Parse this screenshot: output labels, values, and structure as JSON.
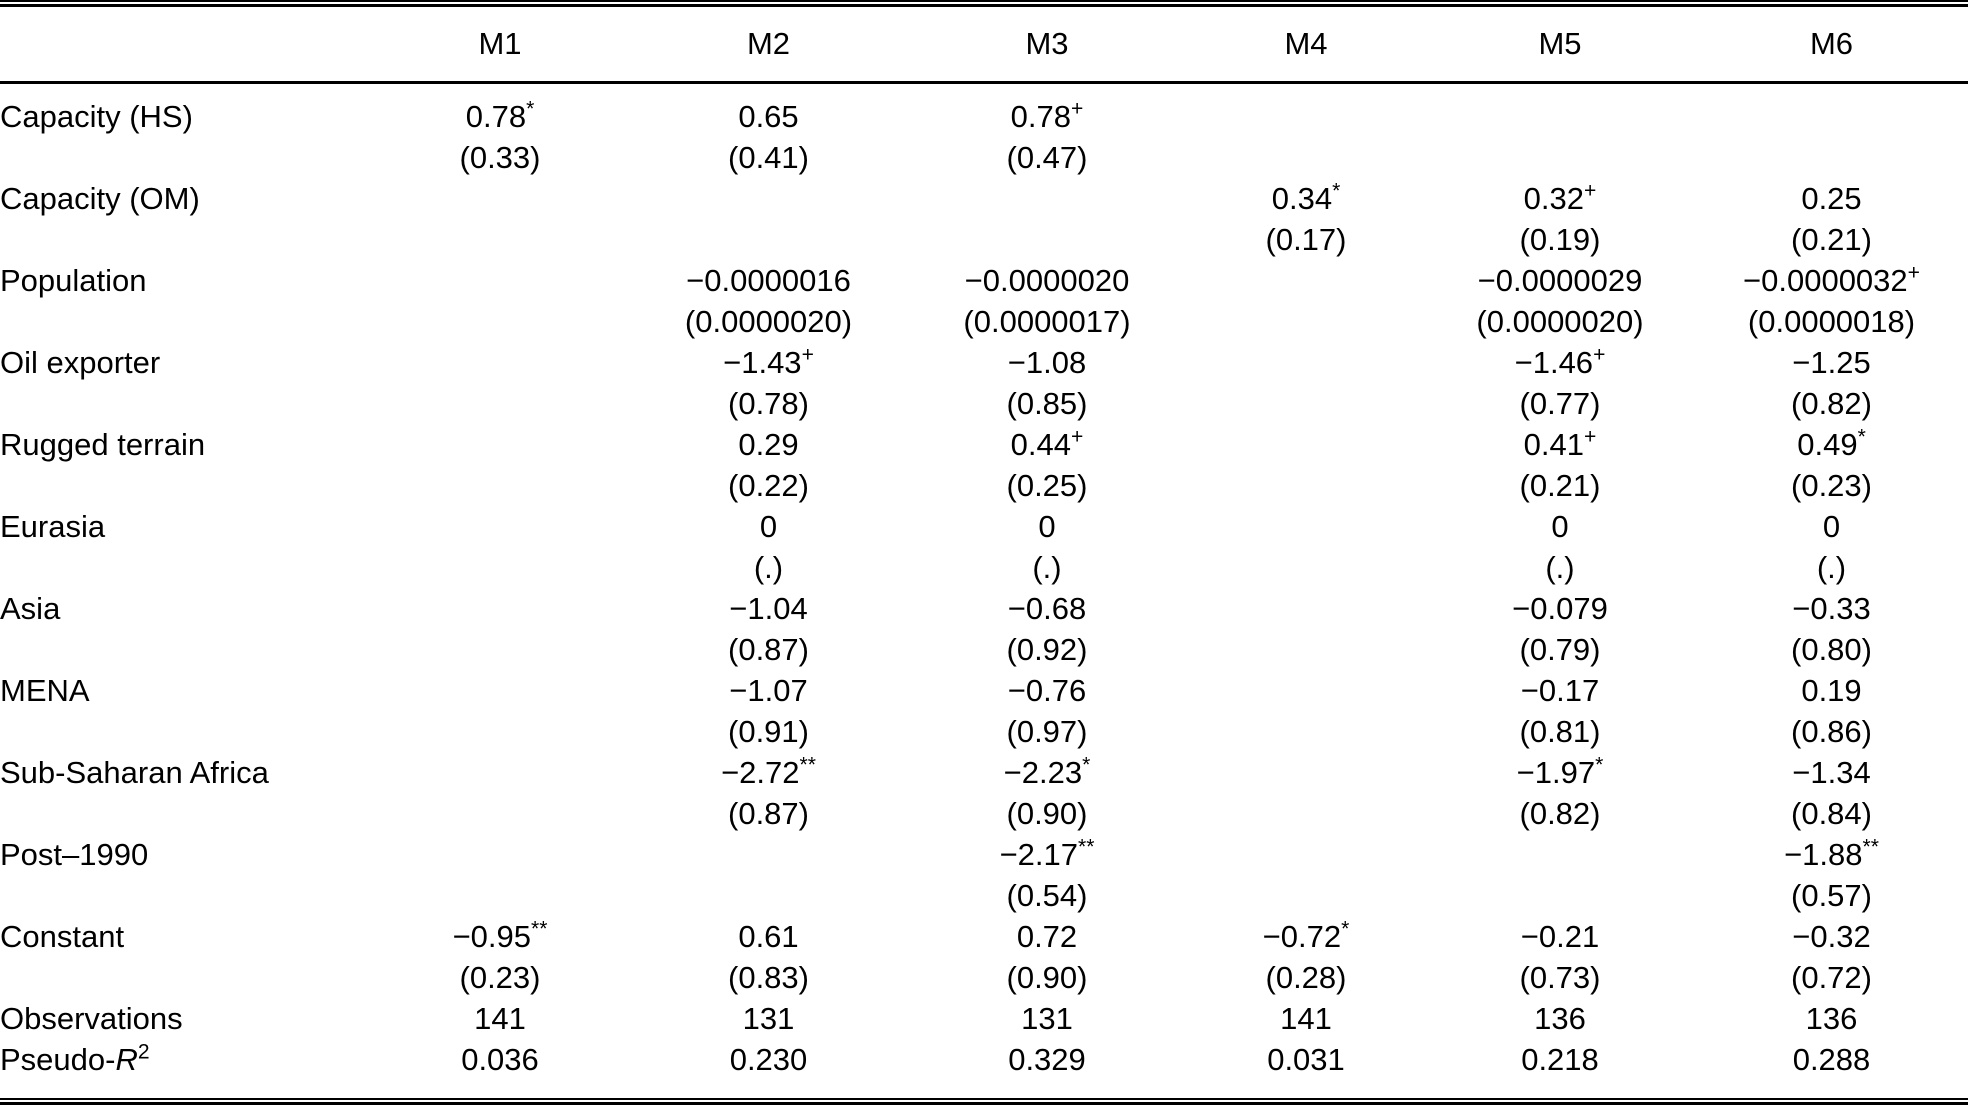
{
  "table": {
    "columns": [
      "",
      "M1",
      "M2",
      "M3",
      "M4",
      "M5",
      "M6"
    ],
    "rows": [
      {
        "kind": "coef",
        "label": "Capacity (HS)",
        "cells": [
          {
            "c": "0.78",
            "m": "*",
            "s": "(0.33)"
          },
          {
            "c": "0.65",
            "m": "",
            "s": "(0.41)"
          },
          {
            "c": "0.78",
            "m": "+",
            "s": "(0.47)"
          },
          null,
          null,
          null
        ]
      },
      {
        "kind": "coef",
        "label": "Capacity (OM)",
        "cells": [
          null,
          null,
          null,
          {
            "c": "0.34",
            "m": "*",
            "s": "(0.17)"
          },
          {
            "c": "0.32",
            "m": "+",
            "s": "(0.19)"
          },
          {
            "c": "0.25",
            "m": "",
            "s": "(0.21)"
          }
        ]
      },
      {
        "kind": "coef",
        "label": "Population",
        "cells": [
          null,
          {
            "c": "−0.0000016",
            "m": "",
            "s": "(0.0000020)"
          },
          {
            "c": "−0.0000020",
            "m": "",
            "s": "(0.0000017)"
          },
          null,
          {
            "c": "−0.0000029",
            "m": "",
            "s": "(0.0000020)"
          },
          {
            "c": "−0.0000032",
            "m": "+",
            "s": "(0.0000018)"
          }
        ]
      },
      {
        "kind": "coef",
        "label": "Oil exporter",
        "cells": [
          null,
          {
            "c": "−1.43",
            "m": "+",
            "s": "(0.78)"
          },
          {
            "c": "−1.08",
            "m": "",
            "s": "(0.85)"
          },
          null,
          {
            "c": "−1.46",
            "m": "+",
            "s": "(0.77)"
          },
          {
            "c": "−1.25",
            "m": "",
            "s": "(0.82)"
          }
        ]
      },
      {
        "kind": "coef",
        "label": "Rugged terrain",
        "cells": [
          null,
          {
            "c": "0.29",
            "m": "",
            "s": "(0.22)"
          },
          {
            "c": "0.44",
            "m": "+",
            "s": "(0.25)"
          },
          null,
          {
            "c": "0.41",
            "m": "+",
            "s": "(0.21)"
          },
          {
            "c": "0.49",
            "m": "*",
            "s": "(0.23)"
          }
        ]
      },
      {
        "kind": "coef",
        "label": "Eurasia",
        "cells": [
          null,
          {
            "c": "0",
            "m": "",
            "s": "(.)"
          },
          {
            "c": "0",
            "m": "",
            "s": "(.)"
          },
          null,
          {
            "c": "0",
            "m": "",
            "s": "(.)"
          },
          {
            "c": "0",
            "m": "",
            "s": "(.)"
          }
        ]
      },
      {
        "kind": "coef",
        "label": "Asia",
        "cells": [
          null,
          {
            "c": "−1.04",
            "m": "",
            "s": "(0.87)"
          },
          {
            "c": "−0.68",
            "m": "",
            "s": "(0.92)"
          },
          null,
          {
            "c": "−0.079",
            "m": "",
            "s": "(0.79)"
          },
          {
            "c": "−0.33",
            "m": "",
            "s": "(0.80)"
          }
        ]
      },
      {
        "kind": "coef",
        "label": "MENA",
        "cells": [
          null,
          {
            "c": "−1.07",
            "m": "",
            "s": "(0.91)"
          },
          {
            "c": "−0.76",
            "m": "",
            "s": "(0.97)"
          },
          null,
          {
            "c": "−0.17",
            "m": "",
            "s": "(0.81)"
          },
          {
            "c": "0.19",
            "m": "",
            "s": "(0.86)"
          }
        ]
      },
      {
        "kind": "coef",
        "label": "Sub-Saharan Africa",
        "cells": [
          null,
          {
            "c": "−2.72",
            "m": "**",
            "s": "(0.87)"
          },
          {
            "c": "−2.23",
            "m": "*",
            "s": "(0.90)"
          },
          null,
          {
            "c": "−1.97",
            "m": "*",
            "s": "(0.82)"
          },
          {
            "c": "−1.34",
            "m": "",
            "s": "(0.84)"
          }
        ]
      },
      {
        "kind": "coef",
        "label": "Post–1990",
        "cells": [
          null,
          null,
          {
            "c": "−2.17",
            "m": "**",
            "s": "(0.54)"
          },
          null,
          null,
          {
            "c": "−1.88",
            "m": "**",
            "s": "(0.57)"
          }
        ]
      },
      {
        "kind": "coef",
        "label": "Constant",
        "cells": [
          {
            "c": "−0.95",
            "m": "**",
            "s": "(0.23)"
          },
          {
            "c": "0.61",
            "m": "",
            "s": "(0.83)"
          },
          {
            "c": "0.72",
            "m": "",
            "s": "(0.90)"
          },
          {
            "c": "−0.72",
            "m": "*",
            "s": "(0.28)"
          },
          {
            "c": "−0.21",
            "m": "",
            "s": "(0.73)"
          },
          {
            "c": "−0.32",
            "m": "",
            "s": "(0.72)"
          }
        ]
      },
      {
        "kind": "stat",
        "label": "Observations",
        "values": [
          "141",
          "131",
          "131",
          "141",
          "136",
          "136"
        ]
      },
      {
        "kind": "stat",
        "label_parts": {
          "prefix": "Pseudo-",
          "italic": "R",
          "sup": "2"
        },
        "values": [
          "0.036",
          "0.230",
          "0.329",
          "0.031",
          "0.218",
          "0.288"
        ]
      }
    ]
  }
}
